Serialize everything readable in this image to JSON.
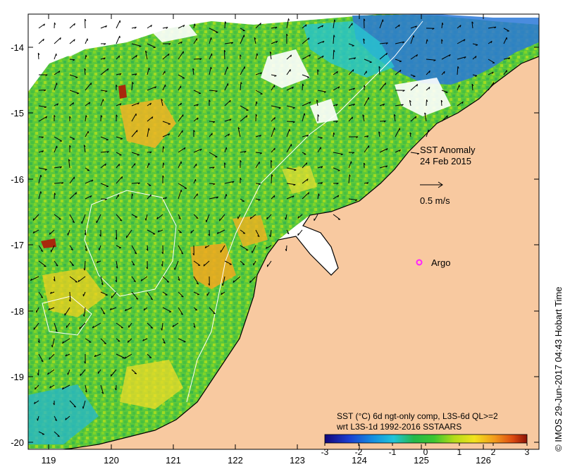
{
  "map": {
    "annotation_title": "SST Anomaly",
    "annotation_date": "24 Feb 2015",
    "velocity_scale_label": "0.5 m/s",
    "argo_label": "Argo",
    "caption_line1": "SST (°C) 6d ngt-only comp, L3S-6d QL>=2",
    "caption_line2": "wrt L3S-1d 1992-2016 SSTAARS",
    "credit": "© IMOS 29-Jun-2017 04:43 Hobart Time",
    "x_ticks": [
      "119",
      "120",
      "121",
      "122",
      "123",
      "124",
      "125",
      "126"
    ],
    "y_ticks": [
      "-14",
      "-15",
      "-16",
      "-17",
      "-18",
      "-19",
      "-20"
    ],
    "colorbar_ticks": [
      "-3",
      "-2",
      "-1",
      "0",
      "1",
      "2",
      "3"
    ],
    "colors": {
      "land": "#f8c9a0",
      "argo_marker": "#ff22ff",
      "colorbar": [
        "#1a0a8c",
        "#1e3fd6",
        "#14a0e0",
        "#2ac2d0",
        "#28c23a",
        "#a8d818",
        "#f0e020",
        "#f0a020",
        "#e05010",
        "#a01808"
      ]
    }
  }
}
